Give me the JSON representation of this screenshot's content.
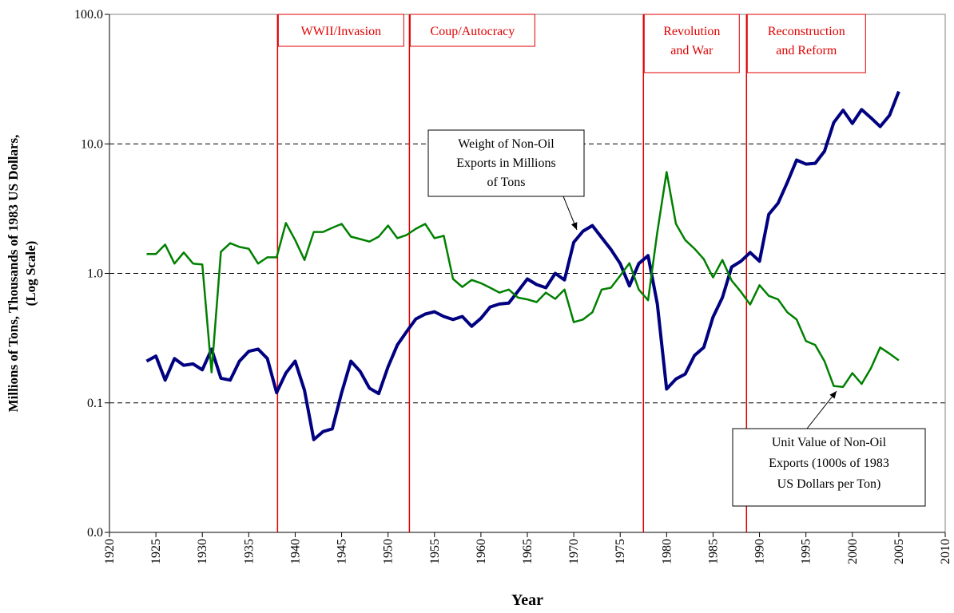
{
  "chart_data": {
    "type": "line",
    "y_label_lines": [
      "Millions of Tons, Thousands of 1983 US Dollars,",
      "(Log Scale)"
    ],
    "x_label": "Year",
    "log_y": true,
    "grid": true,
    "xlim": [
      1920,
      2010
    ],
    "xticks": [
      1920,
      1925,
      1930,
      1935,
      1940,
      1945,
      1950,
      1955,
      1960,
      1965,
      1970,
      1975,
      1980,
      1985,
      1990,
      1995,
      2000,
      2005,
      2010
    ],
    "ylim": [
      0.01,
      100
    ],
    "yticks": [
      {
        "value": 0.01,
        "label": "0.0"
      },
      {
        "value": 0.1,
        "label": "0.1"
      },
      {
        "value": 1,
        "label": "1.0"
      },
      {
        "value": 10,
        "label": "10.0"
      },
      {
        "value": 100,
        "label": "100.0"
      }
    ],
    "x": [
      1924,
      1925,
      1926,
      1927,
      1928,
      1929,
      1930,
      1931,
      1932,
      1933,
      1934,
      1935,
      1936,
      1937,
      1938,
      1939,
      1940,
      1941,
      1942,
      1943,
      1944,
      1945,
      1946,
      1947,
      1948,
      1949,
      1950,
      1951,
      1952,
      1953,
      1954,
      1955,
      1956,
      1957,
      1958,
      1959,
      1960,
      1961,
      1962,
      1963,
      1964,
      1965,
      1966,
      1967,
      1968,
      1969,
      1970,
      1971,
      1972,
      1973,
      1974,
      1975,
      1976,
      1977,
      1978,
      1979,
      1980,
      1981,
      1982,
      1983,
      1984,
      1985,
      1986,
      1987,
      1988,
      1989,
      1990,
      1991,
      1992,
      1993,
      1994,
      1995,
      1996,
      1997,
      1998,
      1999,
      2000,
      2001,
      2002,
      2003,
      2004,
      2005
    ],
    "series": [
      {
        "color": "#000080",
        "values": [
          0.21,
          0.23,
          0.15,
          0.22,
          0.195,
          0.2,
          0.18,
          0.26,
          0.155,
          0.15,
          0.21,
          0.25,
          0.26,
          0.22,
          0.12,
          0.17,
          0.21,
          0.125,
          0.052,
          0.06,
          0.063,
          0.12,
          0.21,
          0.175,
          0.13,
          0.118,
          0.19,
          0.28,
          0.355,
          0.445,
          0.485,
          0.505,
          0.465,
          0.44,
          0.465,
          0.39,
          0.45,
          0.55,
          0.58,
          0.59,
          0.73,
          0.905,
          0.82,
          0.775,
          1.0,
          0.89,
          1.74,
          2.12,
          2.34,
          1.89,
          1.53,
          1.19,
          0.8,
          1.19,
          1.37,
          0.58,
          0.128,
          0.153,
          0.167,
          0.232,
          0.268,
          0.46,
          0.65,
          1.12,
          1.24,
          1.45,
          1.24,
          2.86,
          3.48,
          5.04,
          7.5,
          6.98,
          7.08,
          8.77,
          14.6,
          18.2,
          14.4,
          18.4,
          15.9,
          13.6,
          16.6,
          25.4
        ]
      },
      {
        "color": "#008000",
        "values": [
          1.41,
          1.41,
          1.67,
          1.19,
          1.45,
          1.19,
          1.17,
          0.172,
          1.47,
          1.71,
          1.6,
          1.55,
          1.19,
          1.33,
          1.33,
          2.45,
          1.81,
          1.27,
          2.09,
          2.09,
          2.25,
          2.41,
          1.92,
          1.84,
          1.76,
          1.92,
          2.34,
          1.87,
          1.98,
          2.21,
          2.41,
          1.87,
          1.95,
          0.905,
          0.786,
          0.89,
          0.84,
          0.775,
          0.71,
          0.75,
          0.65,
          0.63,
          0.6,
          0.71,
          0.635,
          0.75,
          0.42,
          0.44,
          0.5,
          0.75,
          0.775,
          0.96,
          1.2,
          0.75,
          0.62,
          2.09,
          6.06,
          2.41,
          1.81,
          1.55,
          1.29,
          0.93,
          1.27,
          0.88,
          0.72,
          0.575,
          0.81,
          0.67,
          0.63,
          0.5,
          0.44,
          0.3,
          0.28,
          0.21,
          0.135,
          0.133,
          0.17,
          0.14,
          0.185,
          0.268,
          0.24,
          0.213
        ]
      }
    ],
    "periods": [
      {
        "start": 1938.1,
        "label_lines": [
          "WWII/Invasion"
        ]
      },
      {
        "start": 1952.3,
        "label_lines": [
          "Coup/Autocracy"
        ]
      },
      {
        "start": 1977.5,
        "label_lines": [
          "Revolution",
          "and War"
        ]
      },
      {
        "start": 1988.6,
        "label_lines": [
          "Reconstruction",
          "and Reform"
        ]
      }
    ],
    "period_color": "#e00000",
    "annotations": [
      {
        "lines": [
          "Weight of Non-Oil",
          "Exports in Millions",
          "of Tons"
        ]
      },
      {
        "lines": [
          "Unit Value of Non-Oil",
          "Exports (1000s of 1983",
          "US Dollars per Ton)"
        ]
      }
    ]
  }
}
